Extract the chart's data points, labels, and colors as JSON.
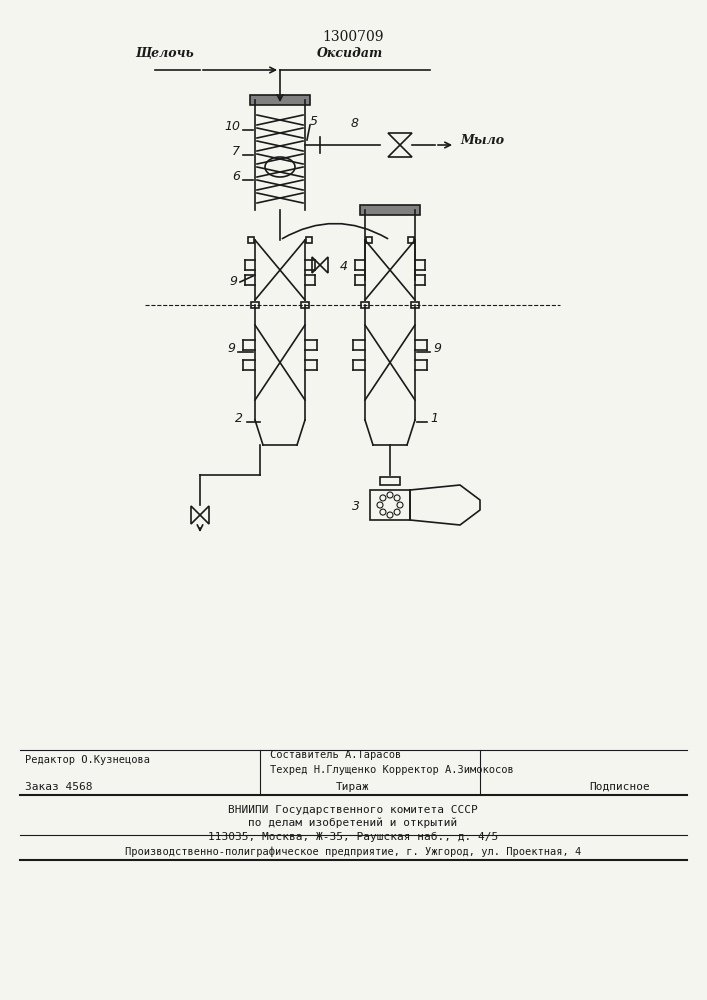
{
  "title": "1300709",
  "bg_color": "#f5f5f0",
  "line_color": "#1a1a1a",
  "label_щелочь": "Щелочь",
  "label_оксидат": "Оксидат",
  "label_мыло": "Мыло",
  "label_редактор": "Редактор О.Кузнецова",
  "label_составитель": "Составитель А.Тарасов",
  "label_техред": "Техред Н.Глущенко Корректор А.Зимокосов",
  "label_заказ": "Заказ 4568",
  "label_тираж": "Тираж",
  "label_подписное": "Подписное",
  "label_вниипи": "ВНИИПИ Государственного комитета СССР",
  "label_делам": "по делам изобретений и открытий",
  "label_адрес": "113035, Москва, Ж-35, Раушская наб., д. 4/5",
  "label_полиграф": "Производственно-полиграфическое предприятие, г. Ужгород, ул. Проектная, 4"
}
